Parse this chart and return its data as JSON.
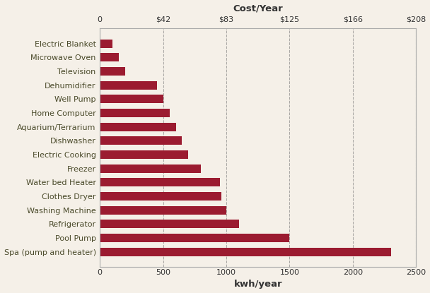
{
  "categories": [
    "Electric Blanket",
    "Microwave Oven",
    "Television",
    "Dehumidifier",
    "Well Pump",
    "Home Computer",
    "Aquarium/Terrarium",
    "Dishwasher",
    "Electric Cooking",
    "Freezer",
    "Water bed Heater",
    "Clothes Dryer",
    "Washing Machine",
    "Refrigerator",
    "Pool Pump",
    "Spa (pump and heater)"
  ],
  "values": [
    100,
    150,
    200,
    450,
    500,
    550,
    600,
    650,
    700,
    800,
    950,
    960,
    1000,
    1100,
    1500,
    2300
  ],
  "bar_color": "#9B1B30",
  "background_color": "#F5F0E8",
  "xlim": [
    0,
    2500
  ],
  "xticks_kwh": [
    0,
    500,
    1000,
    1500,
    2000,
    2500
  ],
  "cost_ticks": [
    "0",
    "$42",
    "$83",
    "$125",
    "$166",
    "$208"
  ],
  "cost_positions": [
    0,
    500,
    1000,
    1500,
    2000,
    2500
  ],
  "xlabel": "kwh/year",
  "cost_label": "Cost/Year",
  "grid_color": "#777777",
  "label_fontsize": 8.0,
  "axis_label_fontsize": 9.5,
  "bar_height": 0.62,
  "label_color": "#555533"
}
